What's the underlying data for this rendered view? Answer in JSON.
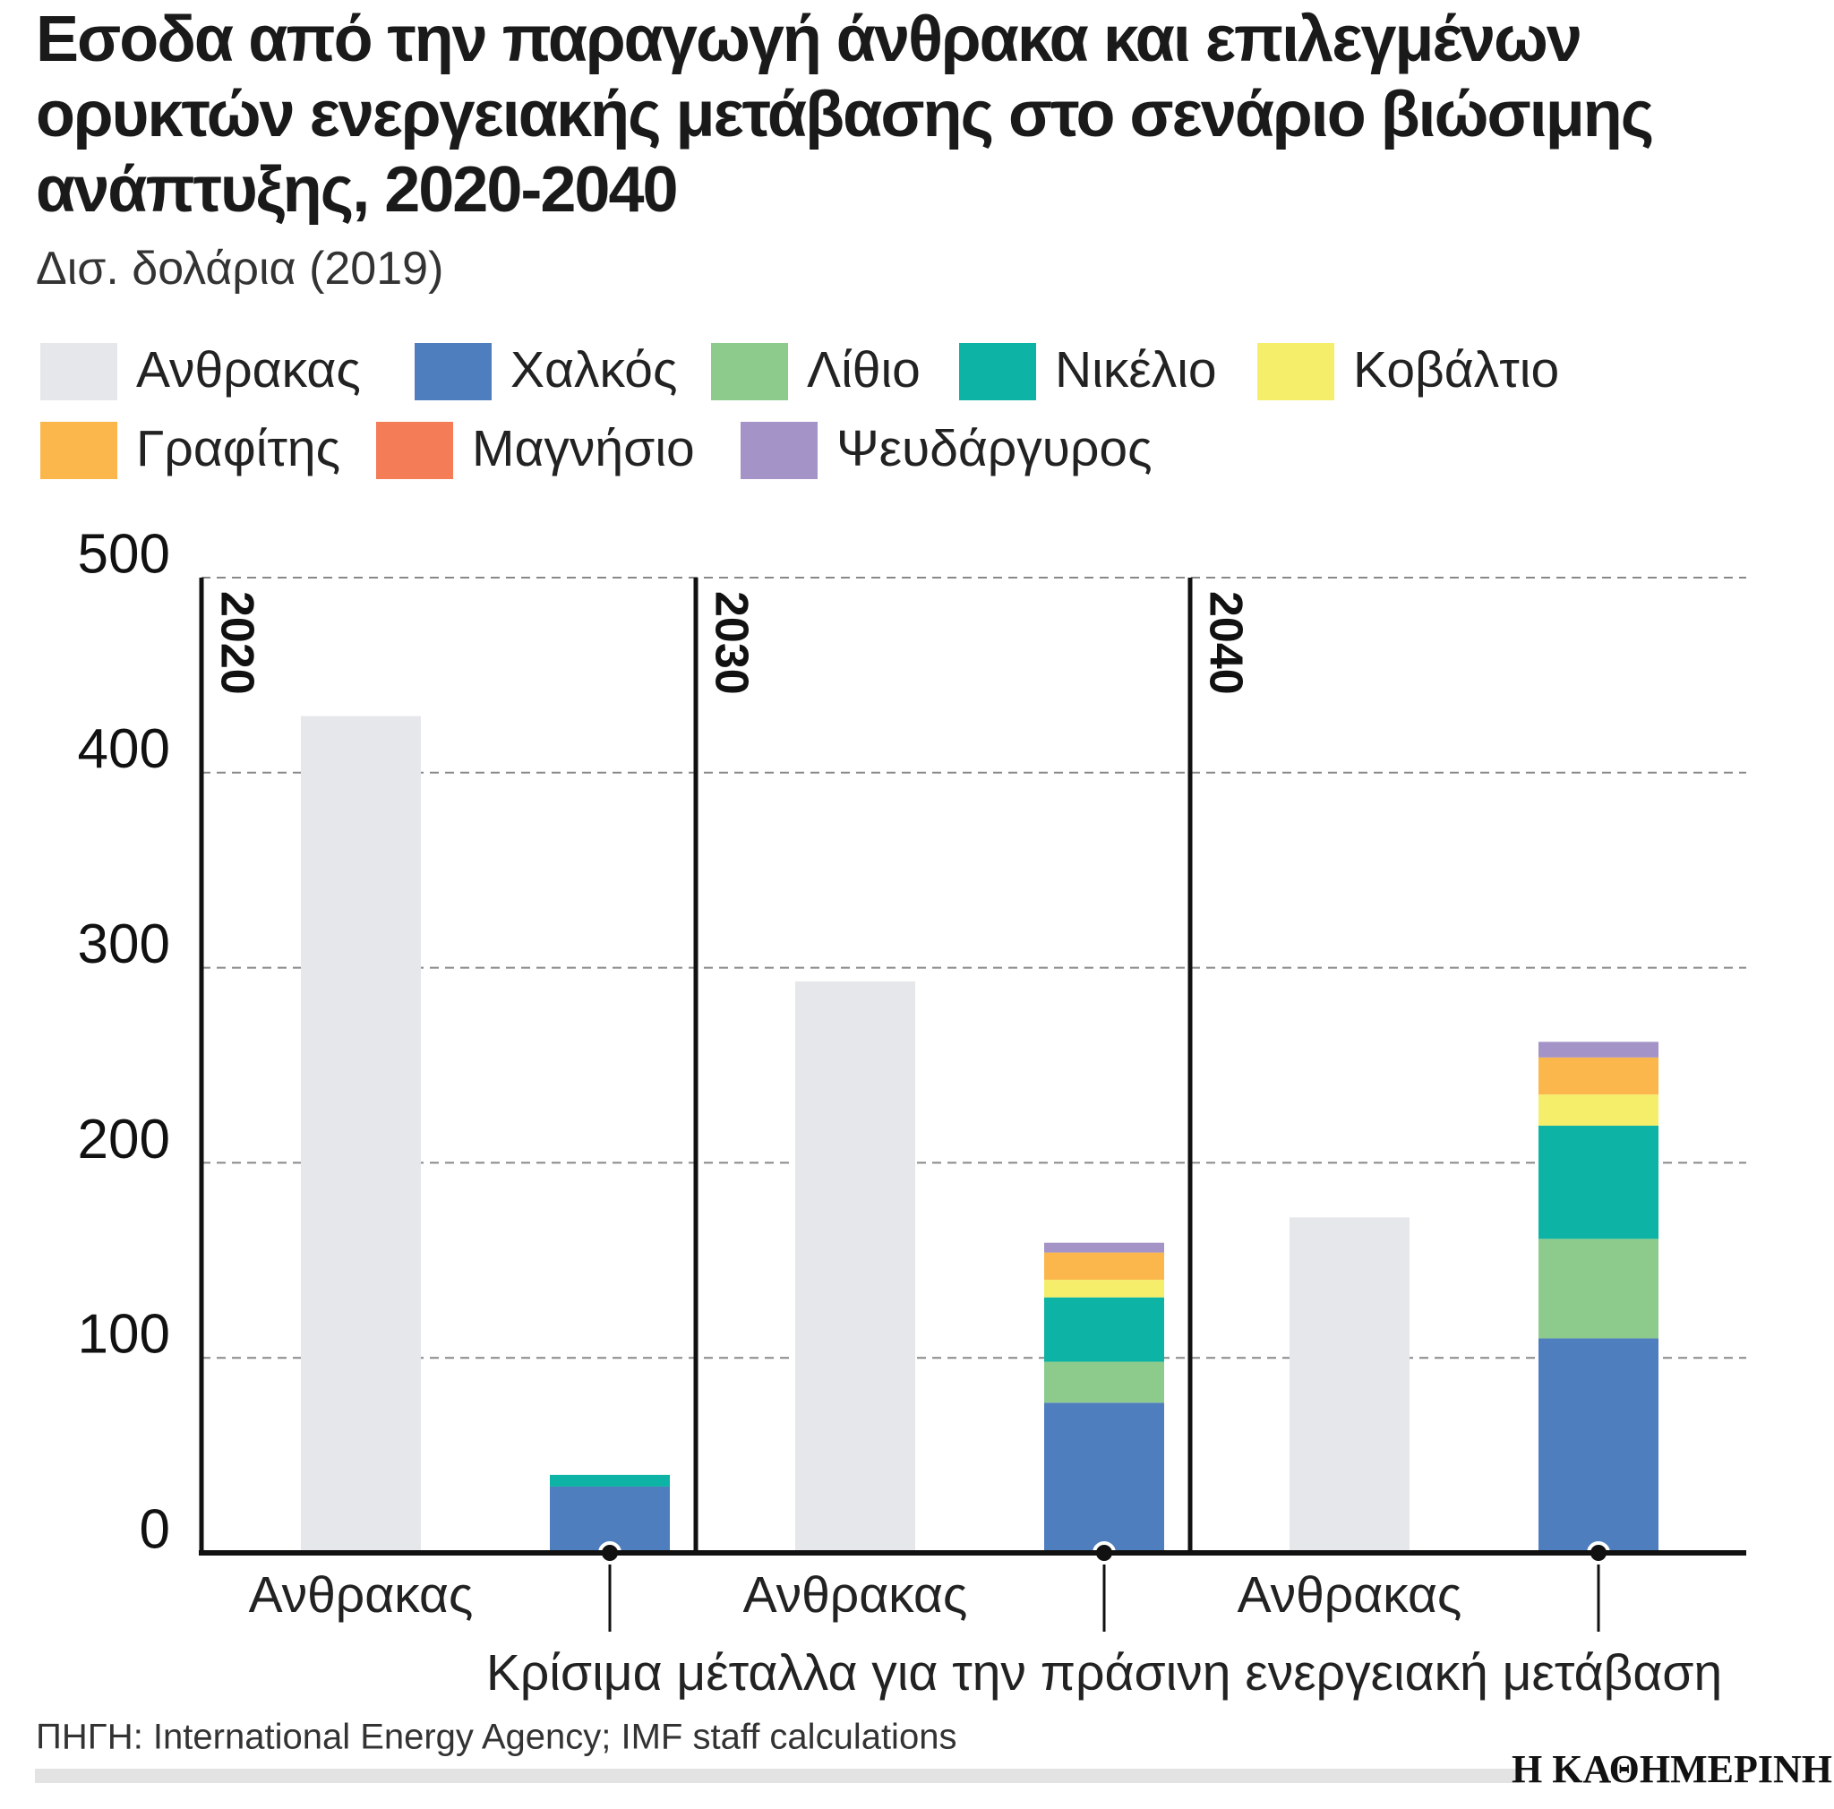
{
  "chart_data": {
    "type": "bar",
    "title": "Εσοδα από την παραγωγή άνθρακα και επιλεγμένων ορυκτών ενεργειακής μετάβασης στο σενάριο βιώσιμης ανάπτυξης, 2020-2040",
    "subtitle": "Δισ. δολάρια (2019)",
    "categories": [
      "2020",
      "2030",
      "2040"
    ],
    "metals_label": "Κρίσιμα μέταλλα για την πράσινη ενεργειακή μετάβαση",
    "series": [
      {
        "name": "Ανθρακας",
        "color": "#e6e7eb",
        "values": [
          429,
          293,
          172
        ]
      },
      {
        "name": "Χαλκός",
        "color": "#4f7ebf",
        "values": [
          34,
          77,
          110
        ]
      },
      {
        "name": "Λίθιο",
        "color": "#8dcb8c",
        "values": [
          0,
          21,
          51
        ]
      },
      {
        "name": "Νικέλιο",
        "color": "#0db3a4",
        "values": [
          6,
          33,
          58
        ]
      },
      {
        "name": "Κοβάλτιο",
        "color": "#f5ee6a",
        "values": [
          0,
          9,
          16
        ]
      },
      {
        "name": "Γραφίτης",
        "color": "#fbb74c",
        "values": [
          0,
          14,
          19
        ]
      },
      {
        "name": "Μαγνήσιο",
        "color": "#f47c56",
        "values": [
          0,
          0,
          0
        ]
      },
      {
        "name": "Ψευδάργυρος",
        "color": "#a493c6",
        "values": [
          0,
          5,
          8
        ]
      }
    ],
    "ylim": [
      0,
      500
    ],
    "yticks": [
      0,
      100,
      200,
      300,
      400,
      500
    ],
    "grid": true,
    "source": "ΠΗΓΗ: International Energy Agency; IMF staff calculations",
    "logo": "Η ΚΑΘΗΜΕΡΙΝΗ"
  }
}
